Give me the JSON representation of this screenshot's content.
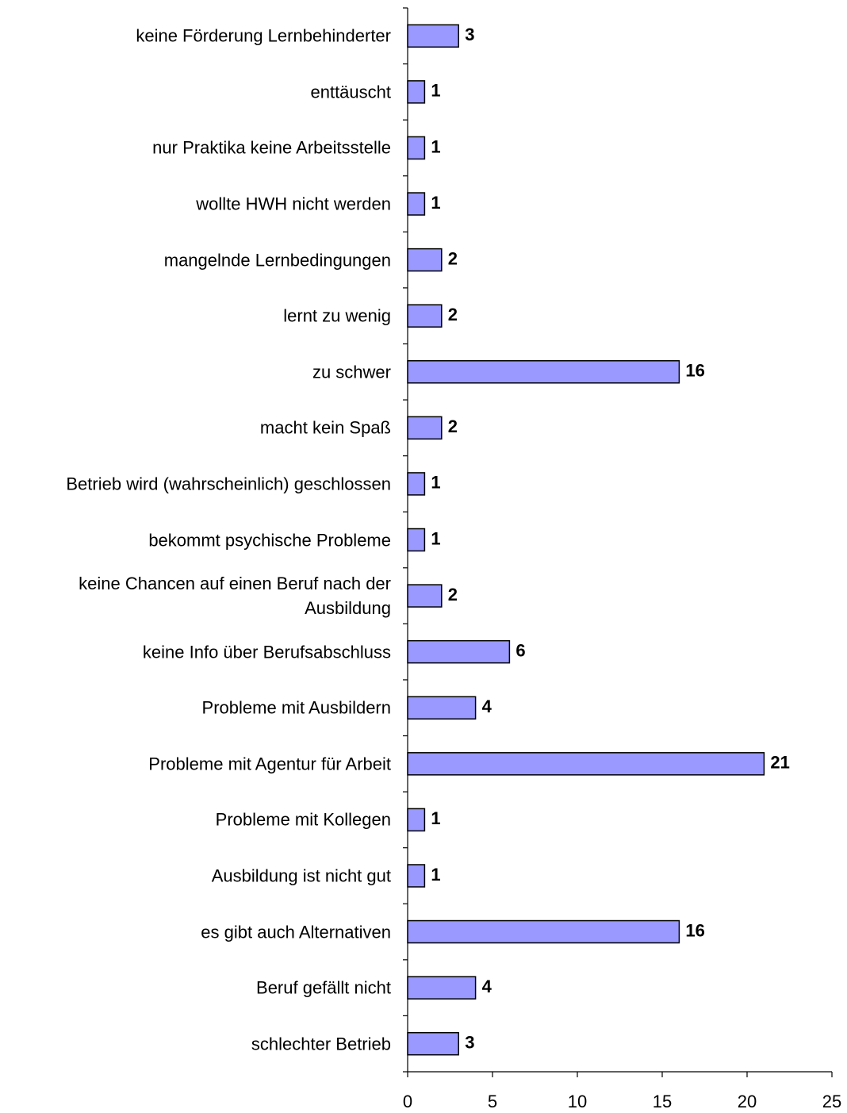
{
  "chart_data": {
    "type": "barh",
    "categories": [
      "keine Förderung Lernbehinderter",
      "enttäuscht",
      "nur Praktika keine Arbeitsstelle",
      "wollte HWH nicht werden",
      "mangelnde Lernbedingungen",
      "lernt zu wenig",
      "zu schwer",
      "macht kein Spaß",
      "Betrieb wird (wahrscheinlich) geschlossen",
      "bekommt psychische Probleme",
      "keine Chancen auf einen Beruf nach der Ausbildung",
      "keine Info über Berufsabschluss",
      "Probleme mit Ausbildern",
      "Probleme mit Agentur für Arbeit",
      "Probleme mit Kollegen",
      "Ausbildung ist nicht gut",
      "es gibt auch Alternativen",
      "Beruf gefällt nicht",
      "schlechter Betrieb"
    ],
    "values": [
      3,
      1,
      1,
      1,
      2,
      2,
      16,
      2,
      1,
      1,
      2,
      6,
      4,
      21,
      1,
      1,
      16,
      4,
      3
    ],
    "color": "#9999ff",
    "xlim": [
      0,
      25
    ],
    "xticks": [
      0,
      5,
      10,
      15,
      20,
      25
    ],
    "grid": false
  }
}
